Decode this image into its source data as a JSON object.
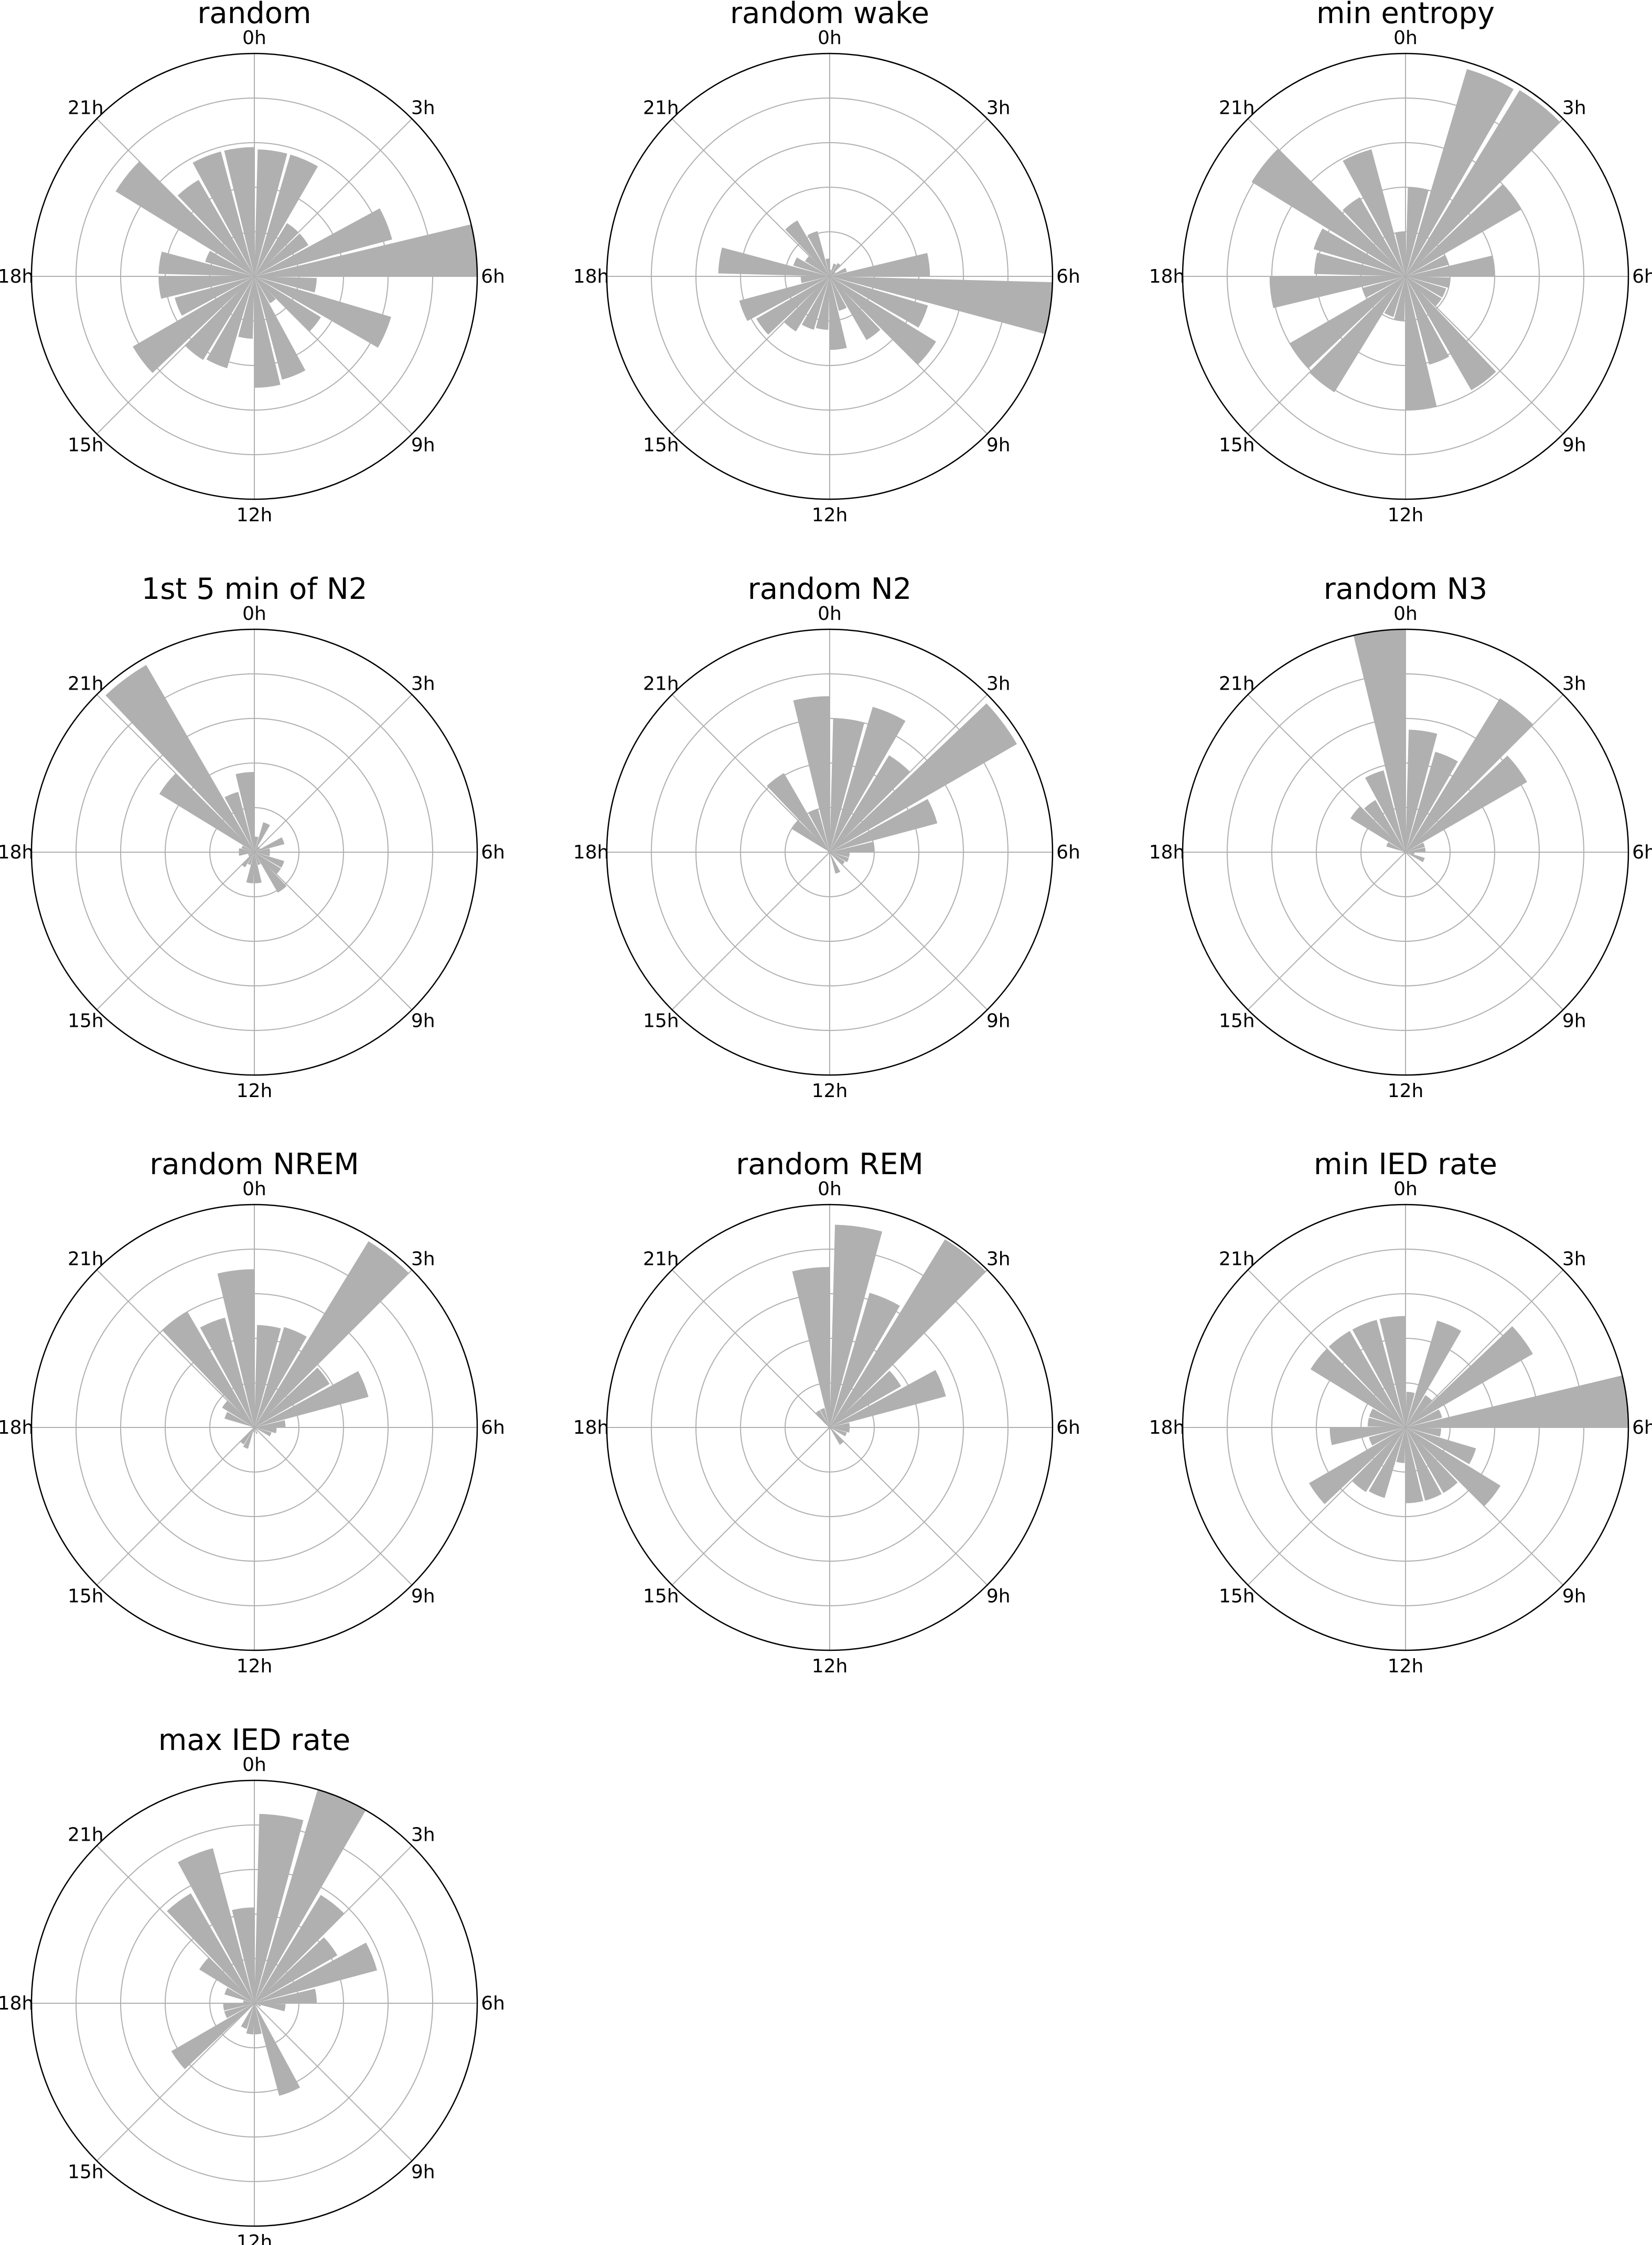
{
  "chart_data": [
    {
      "type": "bar",
      "polar": true,
      "title": "random",
      "theta_tick_labels": [
        "0h",
        "3h",
        "6h",
        "9h",
        "12h",
        "15h",
        "18h",
        "21h"
      ],
      "bins": "hourly 0h-23h",
      "rlim": [
        0,
        1
      ],
      "r_gridlines": [
        0.2,
        0.4,
        0.6,
        0.8
      ],
      "values": [
        0.57,
        0.57,
        0.28,
        0.28,
        0.64,
        1.0,
        0.28,
        0.64,
        0.35,
        0.14,
        0.48,
        0.5,
        0.28,
        0.43,
        0.44,
        0.63,
        0.37,
        0.43,
        0.43,
        0.23,
        0.73,
        0.5,
        0.58,
        0.58
      ]
    },
    {
      "type": "bar",
      "polar": true,
      "title": "random wake",
      "theta_tick_labels": [
        "0h",
        "3h",
        "6h",
        "9h",
        "12h",
        "15h",
        "18h",
        "21h"
      ],
      "bins": "hourly 0h-23h",
      "rlim": [
        0,
        1
      ],
      "r_gridlines": [
        0.2,
        0.4,
        0.6,
        0.8
      ],
      "values": [
        0.03,
        0.06,
        0.07,
        0.03,
        0.08,
        0.45,
        1.0,
        0.46,
        0.56,
        0.33,
        0.16,
        0.33,
        0.24,
        0.25,
        0.29,
        0.38,
        0.42,
        0.13,
        0.5,
        0.17,
        0.13,
        0.29,
        0.21,
        0.08
      ]
    },
    {
      "type": "bar",
      "polar": true,
      "title": "min entropy",
      "theta_tick_labels": [
        "0h",
        "3h",
        "6h",
        "9h",
        "12h",
        "15h",
        "18h",
        "21h"
      ],
      "bins": "hourly 0h-23h",
      "rlim": [
        0,
        1
      ],
      "r_gridlines": [
        0.2,
        0.4,
        0.6,
        0.8
      ],
      "values": [
        0.4,
        0.97,
        0.98,
        0.6,
        0.2,
        0.4,
        0.2,
        0.19,
        0.19,
        0.59,
        0.41,
        0.6,
        0.2,
        0.19,
        0.61,
        0.6,
        0.2,
        0.61,
        0.41,
        0.43,
        0.81,
        0.41,
        0.59,
        0.2
      ]
    },
    {
      "type": "bar",
      "polar": true,
      "title": "1st 5 min of N2",
      "theta_tick_labels": [
        "0h",
        "3h",
        "6h",
        "9h",
        "12h",
        "15h",
        "18h",
        "21h"
      ],
      "bins": "hourly 0h-23h",
      "rlim": [
        0,
        1
      ],
      "r_gridlines": [
        0.2,
        0.4,
        0.6,
        0.8
      ],
      "values": [
        0.07,
        0.14,
        0.03,
        0.03,
        0.14,
        0.07,
        0.07,
        0.14,
        0.14,
        0.21,
        0.06,
        0.14,
        0.14,
        0.06,
        0.08,
        0.03,
        0.03,
        0.07,
        0.07,
        0.06,
        0.5,
        0.97,
        0.28,
        0.36
      ]
    },
    {
      "type": "bar",
      "polar": true,
      "title": "random N2",
      "theta_tick_labels": [
        "0h",
        "3h",
        "6h",
        "9h",
        "12h",
        "15h",
        "18h",
        "21h"
      ],
      "bins": "hourly 0h-23h",
      "rlim": [
        0,
        1
      ],
      "r_gridlines": [
        0.2,
        0.4,
        0.6,
        0.8
      ],
      "values": [
        0.6,
        0.68,
        0.51,
        0.97,
        0.5,
        0.2,
        0.09,
        0.09,
        0.08,
        0,
        0.1,
        0,
        0,
        0,
        0,
        0,
        0,
        0,
        0,
        0,
        0.2,
        0.41,
        0.2,
        0.7
      ]
    },
    {
      "type": "bar",
      "polar": true,
      "title": "random N3",
      "theta_tick_labels": [
        "0h",
        "3h",
        "6h",
        "9h",
        "12h",
        "15h",
        "18h",
        "21h"
      ],
      "bins": "hourly 0h-23h",
      "rlim": [
        0,
        1
      ],
      "r_gridlines": [
        0.2,
        0.4,
        0.6,
        0.8
      ],
      "values": [
        0.55,
        0.47,
        0.81,
        0.63,
        0.09,
        0.09,
        0.04,
        0.09,
        0,
        0,
        0,
        0,
        0,
        0,
        0,
        0,
        0,
        0,
        0,
        0.09,
        0.29,
        0.27,
        0.38,
        1.0
      ]
    },
    {
      "type": "bar",
      "polar": true,
      "title": "random NREM",
      "theta_tick_labels": [
        "0h",
        "3h",
        "6h",
        "9h",
        "12h",
        "15h",
        "18h",
        "21h"
      ],
      "bins": "hourly 0h-23h",
      "rlim": [
        0,
        1
      ],
      "r_gridlines": [
        0.2,
        0.4,
        0.6,
        0.8
      ],
      "values": [
        0.46,
        0.47,
        0.98,
        0.39,
        0.53,
        0.14,
        0.1,
        0.08,
        0,
        0,
        0.03,
        0,
        0.02,
        0.1,
        0.09,
        0,
        0,
        0,
        0,
        0.14,
        0.17,
        0.6,
        0.51,
        0.71
      ]
    },
    {
      "type": "bar",
      "polar": true,
      "title": "random REM",
      "theta_tick_labels": [
        "0h",
        "3h",
        "6h",
        "9h",
        "12h",
        "15h",
        "18h",
        "21h"
      ],
      "bins": "hourly 0h-23h",
      "rlim": [
        0,
        1
      ],
      "r_gridlines": [
        0.2,
        0.4,
        0.6,
        0.8
      ],
      "values": [
        0.91,
        0.63,
        0.99,
        0.37,
        0.54,
        0.09,
        0.09,
        0.08,
        0,
        0.09,
        0,
        0,
        0,
        0,
        0,
        0,
        0,
        0,
        0,
        0,
        0,
        0.09,
        0.09,
        0.72
      ]
    },
    {
      "type": "bar",
      "polar": true,
      "title": "min IED rate",
      "theta_tick_labels": [
        "0h",
        "3h",
        "6h",
        "9h",
        "12h",
        "15h",
        "18h",
        "21h"
      ],
      "bins": "hourly 0h-23h",
      "rlim": [
        0,
        1
      ],
      "r_gridlines": [
        0.2,
        0.4,
        0.6,
        0.8
      ],
      "values": [
        0.16,
        0.5,
        0.17,
        0.66,
        0.17,
        1.0,
        0.16,
        0.33,
        0.5,
        0.34,
        0.34,
        0.34,
        0.16,
        0.33,
        0.34,
        0.5,
        0.17,
        0.34,
        0.17,
        0.17,
        0.5,
        0.5,
        0.5,
        0.5
      ]
    },
    {
      "type": "bar",
      "polar": true,
      "title": "max IED rate",
      "theta_tick_labels": [
        "0h",
        "3h",
        "6h",
        "9h",
        "12h",
        "15h",
        "18h",
        "21h"
      ],
      "bins": "hourly 0h-23h",
      "rlim": [
        0,
        1
      ],
      "r_gridlines": [
        0.2,
        0.4,
        0.6,
        0.8
      ],
      "values": [
        0.85,
        1.0,
        0.57,
        0.43,
        0.57,
        0.28,
        0.14,
        0.03,
        0,
        0,
        0.43,
        0.14,
        0.14,
        0.12,
        0,
        0.43,
        0.14,
        0.14,
        0.05,
        0.14,
        0.29,
        0.57,
        0.72,
        0.43
      ]
    }
  ],
  "colors": {
    "bar": "#b0b0b0",
    "grid": "#b0b0b0",
    "outline": "#000000"
  }
}
